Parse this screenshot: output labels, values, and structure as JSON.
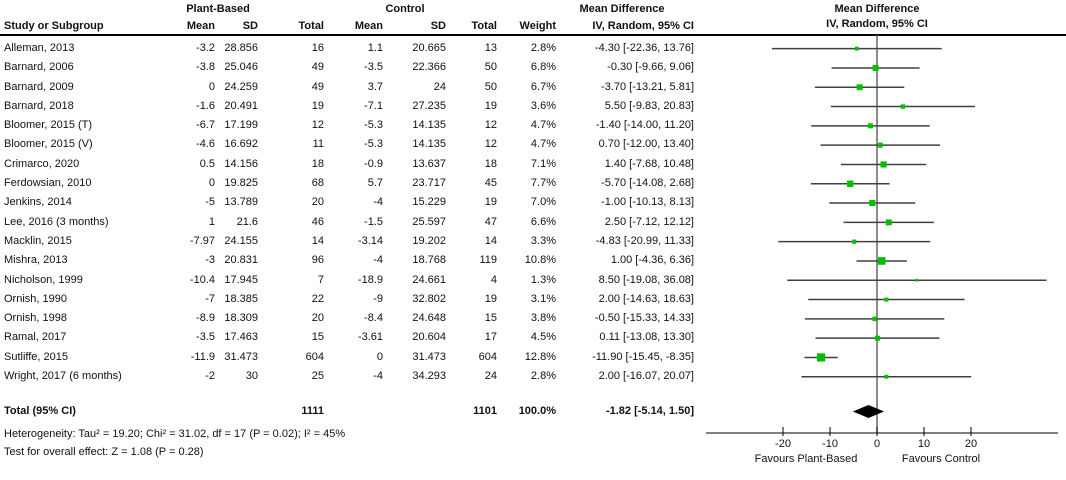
{
  "header": {
    "pb_group": "Plant-Based",
    "c_group": "Control",
    "md_title_text": "Mean Difference",
    "md_title_plot": "Mean Difference",
    "iv_title_text": "IV, Random, 95% CI",
    "iv_title_plot": "IV, Random, 95% CI",
    "cols": {
      "study": "Study or Subgroup",
      "mean": "Mean",
      "sd": "SD",
      "total": "Total",
      "weight": "Weight"
    }
  },
  "rows": [
    {
      "study": "Alleman, 2013",
      "pb_mean": "-3.2",
      "pb_sd": "28.856",
      "pb_total": "16",
      "c_mean": "1.1",
      "c_sd": "20.665",
      "c_total": "13",
      "weight": "2.8%",
      "md_ci": "-4.30 [-22.36, 13.76]"
    },
    {
      "study": "Barnard, 2006",
      "pb_mean": "-3.8",
      "pb_sd": "25.046",
      "pb_total": "49",
      "c_mean": "-3.5",
      "c_sd": "22.366",
      "c_total": "50",
      "weight": "6.8%",
      "md_ci": "-0.30 [-9.66, 9.06]"
    },
    {
      "study": "Barnard, 2009",
      "pb_mean": "0",
      "pb_sd": "24.259",
      "pb_total": "49",
      "c_mean": "3.7",
      "c_sd": "24",
      "c_total": "50",
      "weight": "6.7%",
      "md_ci": "-3.70 [-13.21, 5.81]"
    },
    {
      "study": "Barnard, 2018",
      "pb_mean": "-1.6",
      "pb_sd": "20.491",
      "pb_total": "19",
      "c_mean": "-7.1",
      "c_sd": "27.235",
      "c_total": "19",
      "weight": "3.6%",
      "md_ci": "5.50 [-9.83, 20.83]"
    },
    {
      "study": "Bloomer, 2015 (T)",
      "pb_mean": "-6.7",
      "pb_sd": "17.199",
      "pb_total": "12",
      "c_mean": "-5.3",
      "c_sd": "14.135",
      "c_total": "12",
      "weight": "4.7%",
      "md_ci": "-1.40 [-14.00, 11.20]"
    },
    {
      "study": "Bloomer, 2015 (V)",
      "pb_mean": "-4.6",
      "pb_sd": "16.692",
      "pb_total": "11",
      "c_mean": "-5.3",
      "c_sd": "14.135",
      "c_total": "12",
      "weight": "4.7%",
      "md_ci": "0.70 [-12.00, 13.40]"
    },
    {
      "study": "Crimarco, 2020",
      "pb_mean": "0.5",
      "pb_sd": "14.156",
      "pb_total": "18",
      "c_mean": "-0.9",
      "c_sd": "13.637",
      "c_total": "18",
      "weight": "7.1%",
      "md_ci": "1.40 [-7.68, 10.48]"
    },
    {
      "study": "Ferdowsian, 2010",
      "pb_mean": "0",
      "pb_sd": "19.825",
      "pb_total": "68",
      "c_mean": "5.7",
      "c_sd": "23.717",
      "c_total": "45",
      "weight": "7.7%",
      "md_ci": "-5.70 [-14.08, 2.68]"
    },
    {
      "study": "Jenkins, 2014",
      "pb_mean": "-5",
      "pb_sd": "13.789",
      "pb_total": "20",
      "c_mean": "-4",
      "c_sd": "15.229",
      "c_total": "19",
      "weight": "7.0%",
      "md_ci": "-1.00 [-10.13, 8.13]"
    },
    {
      "study": "Lee, 2016 (3 months)",
      "pb_mean": "1",
      "pb_sd": "21.6",
      "pb_total": "46",
      "c_mean": "-1.5",
      "c_sd": "25.597",
      "c_total": "47",
      "weight": "6.6%",
      "md_ci": "2.50 [-7.12, 12.12]"
    },
    {
      "study": "Macklin, 2015",
      "pb_mean": "-7.97",
      "pb_sd": "24.155",
      "pb_total": "14",
      "c_mean": "-3.14",
      "c_sd": "19.202",
      "c_total": "14",
      "weight": "3.3%",
      "md_ci": "-4.83 [-20.99, 11.33]"
    },
    {
      "study": "Mishra, 2013",
      "pb_mean": "-3",
      "pb_sd": "20.831",
      "pb_total": "96",
      "c_mean": "-4",
      "c_sd": "18.768",
      "c_total": "119",
      "weight": "10.8%",
      "md_ci": "1.00 [-4.36, 6.36]"
    },
    {
      "study": "Nicholson, 1999",
      "pb_mean": "-10.4",
      "pb_sd": "17.945",
      "pb_total": "7",
      "c_mean": "-18.9",
      "c_sd": "24.661",
      "c_total": "4",
      "weight": "1.3%",
      "md_ci": "8.50 [-19.08, 36.08]"
    },
    {
      "study": "Ornish, 1990",
      "pb_mean": "-7",
      "pb_sd": "18.385",
      "pb_total": "22",
      "c_mean": "-9",
      "c_sd": "32.802",
      "c_total": "19",
      "weight": "3.1%",
      "md_ci": "2.00 [-14.63, 18.63]"
    },
    {
      "study": "Ornish, 1998",
      "pb_mean": "-8.9",
      "pb_sd": "18.309",
      "pb_total": "20",
      "c_mean": "-8.4",
      "c_sd": "24.648",
      "c_total": "15",
      "weight": "3.8%",
      "md_ci": "-0.50 [-15.33, 14.33]"
    },
    {
      "study": "Ramal, 2017",
      "pb_mean": "-3.5",
      "pb_sd": "17.463",
      "pb_total": "15",
      "c_mean": "-3.61",
      "c_sd": "20.604",
      "c_total": "17",
      "weight": "4.5%",
      "md_ci": "0.11 [-13.08, 13.30]"
    },
    {
      "study": "Sutliffe, 2015",
      "pb_mean": "-11.9",
      "pb_sd": "31.473",
      "pb_total": "604",
      "c_mean": "0",
      "c_sd": "31.473",
      "c_total": "604",
      "weight": "12.8%",
      "md_ci": "-11.90 [-15.45, -8.35]"
    },
    {
      "study": "Wright, 2017 (6 months)",
      "pb_mean": "-2",
      "pb_sd": "30",
      "pb_total": "25",
      "c_mean": "-4",
      "c_sd": "34.293",
      "c_total": "24",
      "weight": "2.8%",
      "md_ci": "2.00 [-16.07, 20.07]"
    }
  ],
  "total_row": {
    "label": "Total (95% CI)",
    "pb_total": "1111",
    "c_total": "1101",
    "weight": "100.0%",
    "md_ci": "-1.82 [-5.14, 1.50]"
  },
  "footnotes": {
    "heterogeneity": "Heterogeneity: Tau² = 19.20; Chi² = 31.02, df = 17 (P = 0.02); I² = 45%",
    "overall_effect": "Test for overall effect: Z = 1.08 (P = 0.28)"
  },
  "colors": {
    "marker": "#00bf00",
    "ci_line": "#404040",
    "zero_line": "#666666",
    "diamond": "#000000",
    "axis": "#000000"
  },
  "chart_data": {
    "type": "forest",
    "effect_measure": "Mean Difference (IV, Random, 95% CI)",
    "x_ticks": [
      -20,
      -10,
      0,
      10,
      20
    ],
    "x_range": [
      -36,
      38
    ],
    "axis_labels": {
      "left": "Favours Plant-Based",
      "right": "Favours Control"
    },
    "studies": [
      {
        "name": "Alleman, 2013",
        "md": -4.3,
        "lo": -22.36,
        "hi": 13.76,
        "weight": 2.8
      },
      {
        "name": "Barnard, 2006",
        "md": -0.3,
        "lo": -9.66,
        "hi": 9.06,
        "weight": 6.8
      },
      {
        "name": "Barnard, 2009",
        "md": -3.7,
        "lo": -13.21,
        "hi": 5.81,
        "weight": 6.7
      },
      {
        "name": "Barnard, 2018",
        "md": 5.5,
        "lo": -9.83,
        "hi": 20.83,
        "weight": 3.6
      },
      {
        "name": "Bloomer, 2015 (T)",
        "md": -1.4,
        "lo": -14.0,
        "hi": 11.2,
        "weight": 4.7
      },
      {
        "name": "Bloomer, 2015 (V)",
        "md": 0.7,
        "lo": -12.0,
        "hi": 13.4,
        "weight": 4.7
      },
      {
        "name": "Crimarco, 2020",
        "md": 1.4,
        "lo": -7.68,
        "hi": 10.48,
        "weight": 7.1
      },
      {
        "name": "Ferdowsian, 2010",
        "md": -5.7,
        "lo": -14.08,
        "hi": 2.68,
        "weight": 7.7
      },
      {
        "name": "Jenkins, 2014",
        "md": -1.0,
        "lo": -10.13,
        "hi": 8.13,
        "weight": 7.0
      },
      {
        "name": "Lee, 2016 (3 months)",
        "md": 2.5,
        "lo": -7.12,
        "hi": 12.12,
        "weight": 6.6
      },
      {
        "name": "Macklin, 2015",
        "md": -4.83,
        "lo": -20.99,
        "hi": 11.33,
        "weight": 3.3
      },
      {
        "name": "Mishra, 2013",
        "md": 1.0,
        "lo": -4.36,
        "hi": 6.36,
        "weight": 10.8
      },
      {
        "name": "Nicholson, 1999",
        "md": 8.5,
        "lo": -19.08,
        "hi": 36.08,
        "weight": 1.3
      },
      {
        "name": "Ornish, 1990",
        "md": 2.0,
        "lo": -14.63,
        "hi": 18.63,
        "weight": 3.1
      },
      {
        "name": "Ornish, 1998",
        "md": -0.5,
        "lo": -15.33,
        "hi": 14.33,
        "weight": 3.8
      },
      {
        "name": "Ramal, 2017",
        "md": 0.11,
        "lo": -13.08,
        "hi": 13.3,
        "weight": 4.5
      },
      {
        "name": "Sutliffe, 2015",
        "md": -11.9,
        "lo": -15.45,
        "hi": -8.35,
        "weight": 12.8
      },
      {
        "name": "Wright, 2017 (6 months)",
        "md": 2.0,
        "lo": -16.07,
        "hi": 20.07,
        "weight": 2.8
      }
    ],
    "overall": {
      "name": "Total (95% CI)",
      "md": -1.82,
      "lo": -5.14,
      "hi": 1.5
    }
  }
}
